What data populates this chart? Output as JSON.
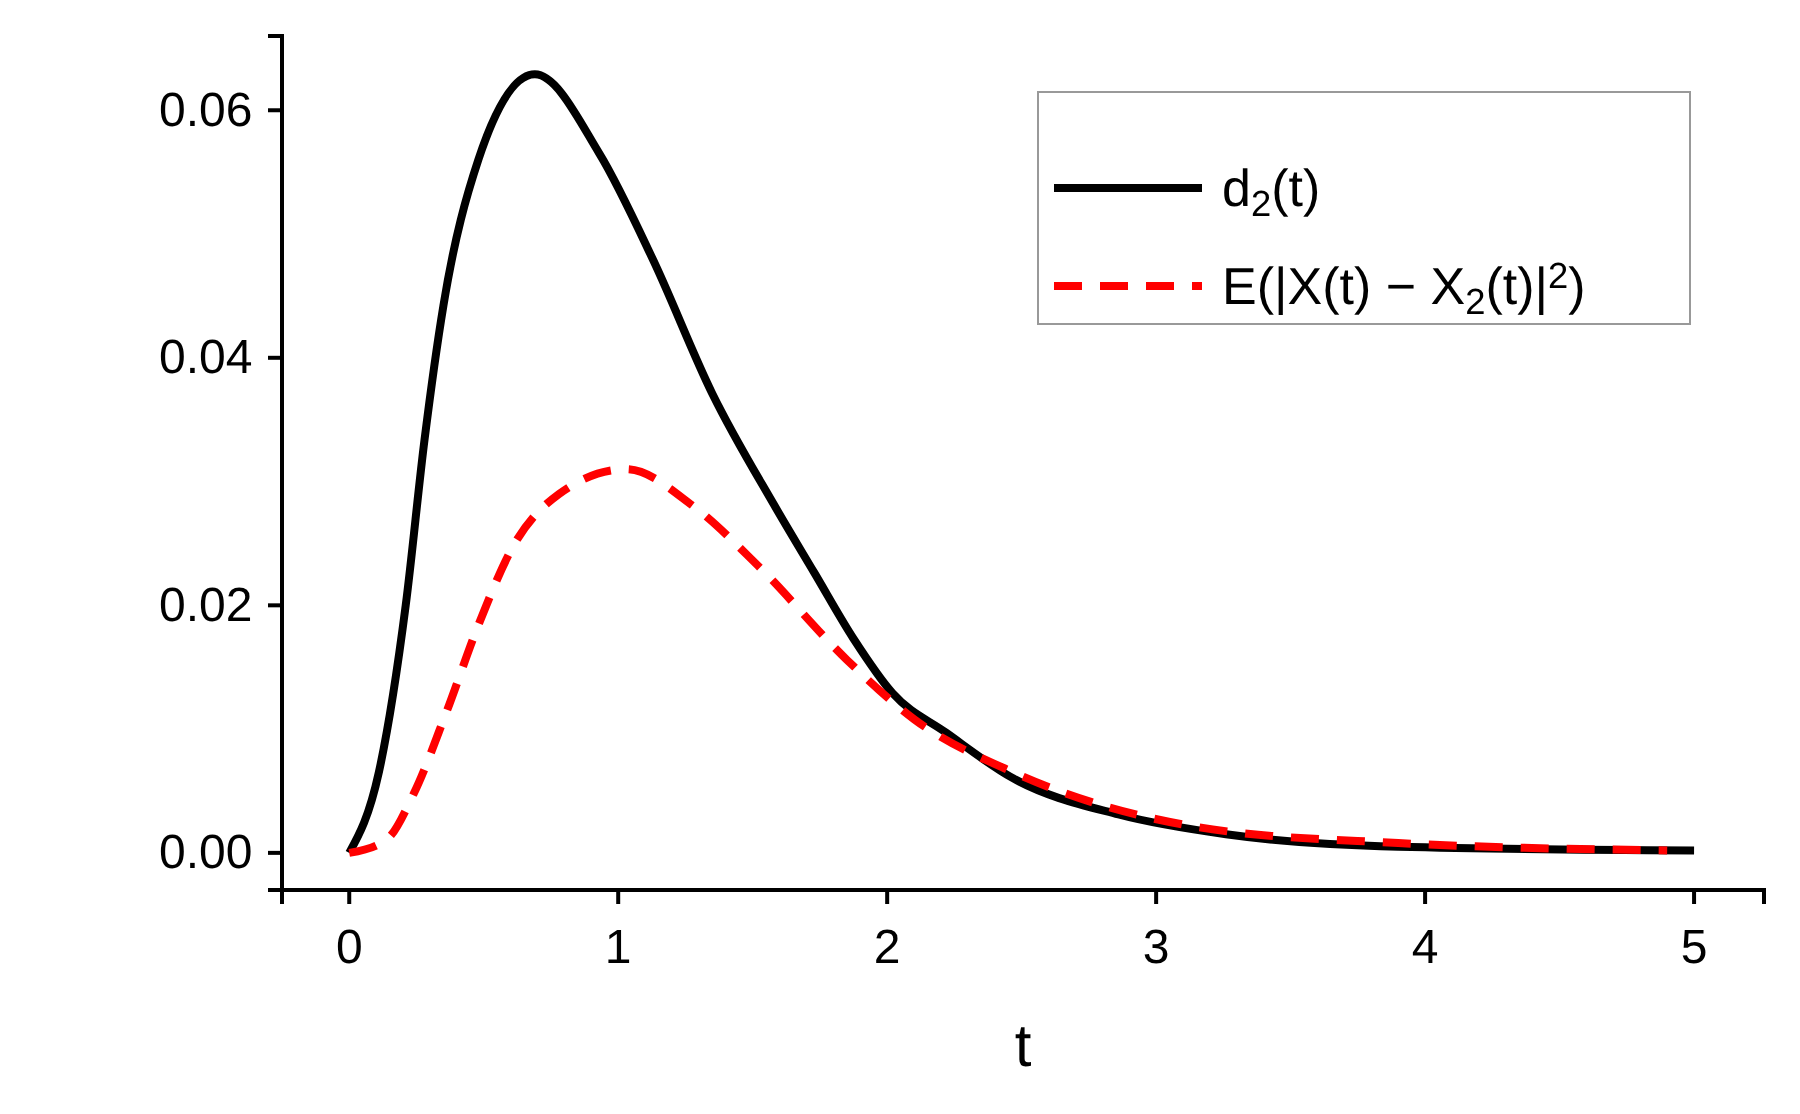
{
  "chart_data": {
    "type": "line",
    "xlabel": "t",
    "xlim": [
      -0.25,
      5.26
    ],
    "ylim": [
      -0.003,
      0.066
    ],
    "xticks": [
      0,
      1,
      2,
      3,
      4,
      5
    ],
    "yticks": [
      {
        "value": 0,
        "label": "0.00"
      },
      {
        "value": 0.02,
        "label": "0.02"
      },
      {
        "value": 0.04,
        "label": "0.04"
      },
      {
        "value": 0.06,
        "label": "0.06"
      }
    ],
    "grid": false,
    "legend": "top right",
    "marker": "none",
    "series": [
      {
        "name": "d$_{2}$(t)",
        "color": "#000000",
        "line_style": "solid",
        "x": [
          0,
          0.11,
          0.21,
          0.28,
          0.35,
          0.48,
          0.69,
          0.93,
          1.13,
          1.35,
          1.58,
          1.73,
          1.875,
          2.02,
          2.22,
          2.47,
          2.86,
          3.26,
          3.9,
          5
        ],
        "values": [
          0,
          0.0065,
          0.02,
          0.0334,
          0.0442,
          0.056,
          0.0629,
          0.0565,
          0.0479,
          0.0371,
          0.0281,
          0.0226,
          0.0173,
          0.0129,
          0.0097,
          0.006,
          0.0031,
          0.0015,
          0.0005,
          0.0002
        ]
      },
      {
        "name": "E(|X(t) − X$_{2}$(t)|$^{2}$)",
        "color": "#ff0000",
        "line_style": "dashed",
        "x": [
          0,
          0.14,
          0.24,
          0.36,
          0.48,
          0.61,
          0.78,
          1.03,
          1.28,
          1.52,
          1.85,
          2.1,
          2.47,
          3.21,
          3.9,
          4.9
        ],
        "values": [
          0,
          0.0011,
          0.0048,
          0.0113,
          0.0184,
          0.0248,
          0.029,
          0.031,
          0.028,
          0.0232,
          0.0156,
          0.0108,
          0.0065,
          0.0019,
          0.0008,
          0.0002
        ]
      }
    ]
  }
}
